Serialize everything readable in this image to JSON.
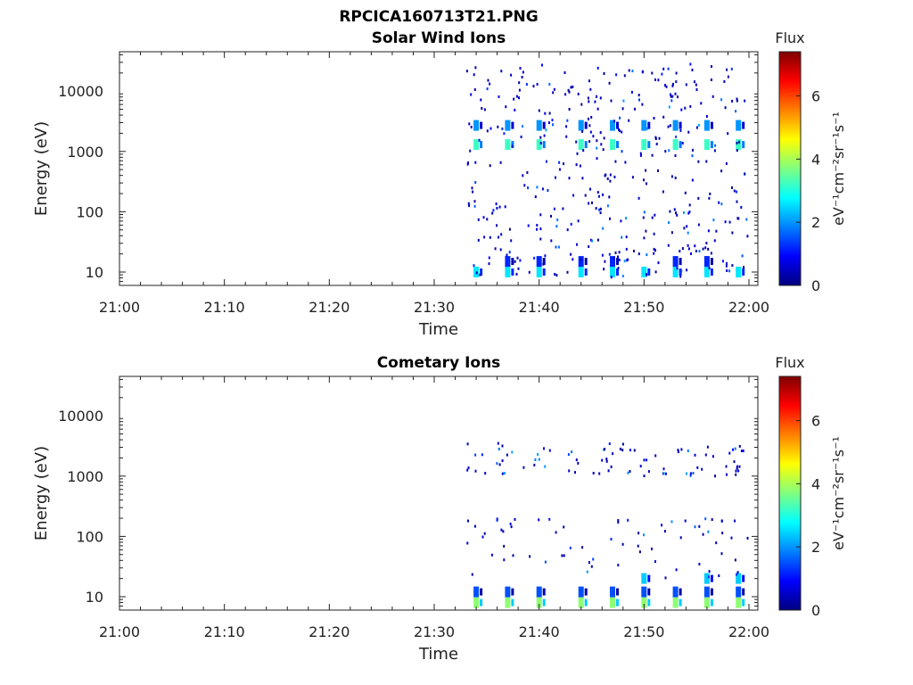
{
  "figure": {
    "title": "RPCICA160713T21.PNG"
  },
  "colormap": [
    "#00007f",
    "#0000ff",
    "#0080ff",
    "#00ffff",
    "#80ff80",
    "#ffff00",
    "#ff8000",
    "#ff0000",
    "#7f0000"
  ],
  "chart_data": [
    {
      "type": "heatmap",
      "title": "Solar Wind Ions",
      "xlabel": "Time",
      "ylabel": "Energy (eV)",
      "x_ticks": [
        "21:00",
        "21:10",
        "21:20",
        "21:30",
        "21:40",
        "21:50",
        "22:00"
      ],
      "xlim": [
        "21:00",
        "22:00"
      ],
      "y_ticks": [
        "10",
        "100",
        "1000",
        "10000"
      ],
      "ylim": [
        6,
        45000
      ],
      "y_scale": "log",
      "colorbar": {
        "title": "Flux",
        "unit": "eV⁻¹cm⁻²sr⁻¹s⁻¹",
        "ticks": [
          "0",
          "2",
          "4",
          "6"
        ],
        "range": [
          0,
          7.4
        ]
      },
      "data_start": "21:33",
      "bands": [
        {
          "energy": 1300,
          "level": 3.2,
          "times": [
            "21:34",
            "21:37",
            "21:40",
            "21:44",
            "21:47",
            "21:50",
            "21:53",
            "21:56",
            "21:59"
          ]
        },
        {
          "energy": 2700,
          "level": 2.0,
          "times": [
            "21:34",
            "21:37",
            "21:40",
            "21:44",
            "21:47",
            "21:50",
            "21:53",
            "21:56",
            "21:59"
          ]
        },
        {
          "energy": 10,
          "level": 2.6,
          "times": [
            "21:34",
            "21:37",
            "21:40",
            "21:44",
            "21:47",
            "21:50",
            "21:53",
            "21:56",
            "21:59"
          ]
        },
        {
          "energy": 15,
          "level": 1.2,
          "times": [
            "21:37",
            "21:40",
            "21:44",
            "21:47",
            "21:53",
            "21:56"
          ]
        }
      ],
      "scatter_ranges": [
        [
          8,
          30000
        ]
      ],
      "scatter_count": 420
    },
    {
      "type": "heatmap",
      "title": "Cometary Ions",
      "xlabel": "Time",
      "ylabel": "Energy (eV)",
      "x_ticks": [
        "21:00",
        "21:10",
        "21:20",
        "21:30",
        "21:40",
        "21:50",
        "22:00"
      ],
      "xlim": [
        "21:00",
        "22:00"
      ],
      "y_ticks": [
        "10",
        "100",
        "1000",
        "10000"
      ],
      "ylim": [
        6,
        45000
      ],
      "y_scale": "log",
      "colorbar": {
        "title": "Flux",
        "unit": "eV⁻¹cm⁻²sr⁻¹s⁻¹",
        "ticks": [
          "0",
          "2",
          "4",
          "6"
        ],
        "range": [
          0,
          7.4
        ]
      },
      "data_start": "21:33",
      "bands": [
        {
          "energy": 8,
          "level": 3.8,
          "times": [
            "21:34",
            "21:37",
            "21:40",
            "21:44",
            "21:47",
            "21:50",
            "21:53",
            "21:56",
            "21:59"
          ]
        },
        {
          "energy": 12,
          "level": 1.5,
          "times": [
            "21:34",
            "21:37",
            "21:40",
            "21:44",
            "21:47",
            "21:50",
            "21:53",
            "21:56",
            "21:59"
          ]
        },
        {
          "energy": 20,
          "level": 2.4,
          "times": [
            "21:50",
            "21:56",
            "21:59"
          ]
        }
      ],
      "scatter_ranges": [
        [
          20,
          200
        ],
        [
          1000,
          3500
        ]
      ],
      "scatter_count": 160
    }
  ]
}
